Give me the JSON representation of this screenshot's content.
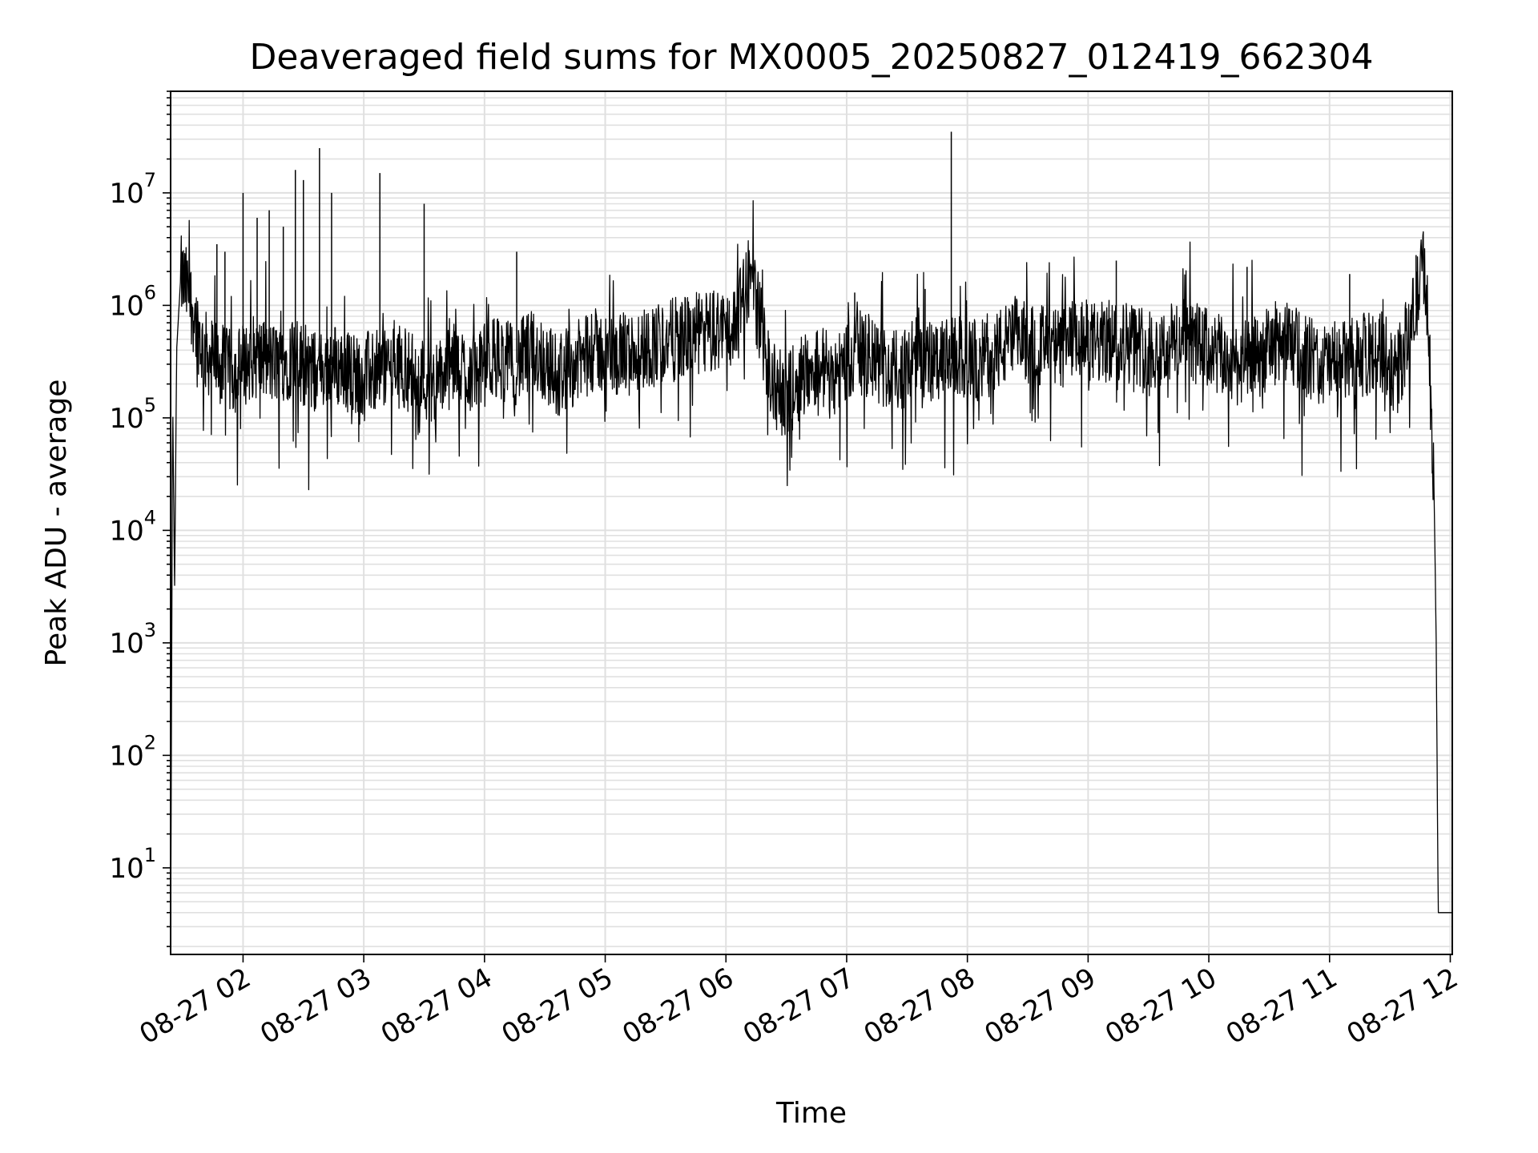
{
  "chart_data": {
    "type": "line",
    "title": "Deaveraged field sums for MX0005_20250827_012419_662304",
    "xlabel": "Time",
    "ylabel": "Peak ADU - average",
    "yscale": "log",
    "ylim": [
      1.7,
      80000000
    ],
    "xlim": [
      "08-27 01:24",
      "08-27 12:01"
    ],
    "grid": true,
    "line_color": "#000000",
    "grid_color": "#e0e0e0",
    "x_ticks": [
      "08-27 02",
      "08-27 03",
      "08-27 04",
      "08-27 05",
      "08-27 06",
      "08-27 07",
      "08-27 08",
      "08-27 09",
      "08-27 10",
      "08-27 11",
      "08-27 12"
    ],
    "y_ticks": [
      {
        "value": 10,
        "base": "10",
        "exp": "1"
      },
      {
        "value": 100,
        "base": "10",
        "exp": "2"
      },
      {
        "value": 1000,
        "base": "10",
        "exp": "3"
      },
      {
        "value": 10000,
        "base": "10",
        "exp": "4"
      },
      {
        "value": 100000,
        "base": "10",
        "exp": "5"
      },
      {
        "value": 1000000,
        "base": "10",
        "exp": "6"
      },
      {
        "value": 10000000,
        "base": "10",
        "exp": "7"
      }
    ],
    "series": [
      {
        "x": [
          "08-27 01:24",
          "08-27 01:25",
          "08-27 01:26",
          "08-27 01:27",
          "08-27 01:29",
          "08-27 01:33",
          "08-27 01:40",
          "08-27 01:48",
          "08-27 01:55",
          "08-27 02:05",
          "08-27 02:15",
          "08-27 02:25",
          "08-27 02:35",
          "08-27 02:45",
          "08-27 02:55",
          "08-27 03:05",
          "08-27 03:15",
          "08-27 03:25",
          "08-27 03:35",
          "08-27 03:45",
          "08-27 03:55",
          "08-27 04:05",
          "08-27 04:15",
          "08-27 04:25",
          "08-27 04:35",
          "08-27 04:45",
          "08-27 04:55",
          "08-27 05:05",
          "08-27 05:15",
          "08-27 05:25",
          "08-27 05:35",
          "08-27 05:45",
          "08-27 05:55",
          "08-27 06:05",
          "08-27 06:12",
          "08-27 06:17",
          "08-27 06:23",
          "08-27 06:30",
          "08-27 06:38",
          "08-27 06:45",
          "08-27 06:55",
          "08-27 07:05",
          "08-27 07:15",
          "08-27 07:25",
          "08-27 07:35",
          "08-27 07:45",
          "08-27 07:55",
          "08-27 08:05",
          "08-27 08:15",
          "08-27 08:25",
          "08-27 08:35",
          "08-27 08:45",
          "08-27 08:55",
          "08-27 09:05",
          "08-27 09:15",
          "08-27 09:25",
          "08-27 09:35",
          "08-27 09:45",
          "08-27 09:55",
          "08-27 10:05",
          "08-27 10:15",
          "08-27 10:25",
          "08-27 10:35",
          "08-27 10:45",
          "08-27 10:55",
          "08-27 11:05",
          "08-27 11:15",
          "08-27 11:25",
          "08-27 11:35",
          "08-27 11:43",
          "08-27 11:47",
          "08-27 11:50",
          "08-27 11:52",
          "08-27 11:53",
          "08-27 11:54",
          "08-27 12:01"
        ],
        "values": [
          2,
          150000,
          3000,
          400000,
          1800000,
          1300000,
          400000,
          300000,
          250000,
          350000,
          300000,
          350000,
          250000,
          300000,
          250000,
          250000,
          300000,
          250000,
          200000,
          300000,
          250000,
          350000,
          300000,
          400000,
          250000,
          300000,
          400000,
          350000,
          400000,
          450000,
          500000,
          550000,
          600000,
          650000,
          2000000,
          700000,
          200000,
          150000,
          250000,
          300000,
          250000,
          400000,
          300000,
          250000,
          350000,
          300000,
          350000,
          300000,
          400000,
          500000,
          450000,
          400000,
          500000,
          450000,
          500000,
          450000,
          400000,
          500000,
          450000,
          350000,
          300000,
          350000,
          500000,
          400000,
          300000,
          300000,
          350000,
          400000,
          300000,
          1000000,
          2500000,
          300000,
          20000,
          1000,
          4,
          4
        ]
      },
      {
        "name_hidden": true,
        "x": [
          "08-27 01:47",
          "08-27 01:51",
          "08-27 02:00",
          "08-27 02:07",
          "08-27 02:13",
          "08-27 02:20",
          "08-27 02:26",
          "08-27 02:30",
          "08-27 02:38",
          "08-27 02:44",
          "08-27 03:08",
          "08-27 03:30",
          "08-27 04:16",
          "08-27 07:04",
          "08-27 07:39",
          "08-27 07:52",
          "08-27 09:14",
          "08-27 10:19",
          "08-27 11:10",
          "08-27 11:43"
        ],
        "values": [
          3500000,
          3000000,
          10000000,
          6000000,
          7000000,
          5000000,
          16000000,
          13000000,
          25000000,
          10000000,
          15000000,
          8000000,
          3000000,
          1300000,
          1400000,
          35000000,
          2500000,
          2200000,
          1900000,
          2800000
        ]
      }
    ]
  }
}
